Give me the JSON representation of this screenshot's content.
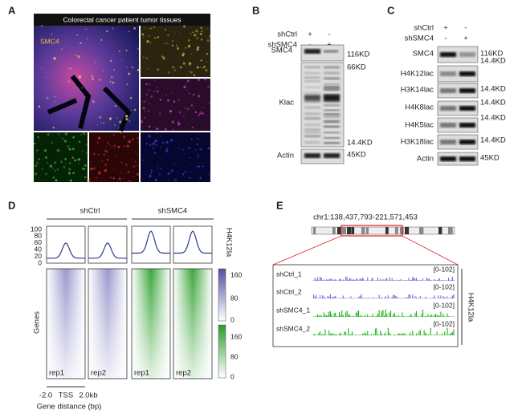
{
  "panel_a": {
    "letter": "A",
    "title": "Colorectal cancer patient tumor tissues",
    "label": "SMC4"
  },
  "panel_b": {
    "letter": "B",
    "conditions": [
      {
        "name": "shCtrl",
        "lanes": [
          "+",
          "-"
        ]
      },
      {
        "name": "shSMC4",
        "lanes": [
          "-",
          "+"
        ]
      }
    ],
    "rows": [
      {
        "label": "SMC4",
        "markers": [
          "116KD"
        ]
      },
      {
        "label": "Klac",
        "markers": [
          "66KD",
          "14.4KD"
        ]
      },
      {
        "label": "Actin",
        "markers": [
          "45KD"
        ]
      }
    ]
  },
  "panel_c": {
    "letter": "C",
    "conditions": [
      {
        "name": "shCtrl",
        "lanes": [
          "+",
          "-"
        ]
      },
      {
        "name": "shSMC4",
        "lanes": [
          "-",
          "+"
        ]
      }
    ],
    "rows": [
      {
        "label": "SMC4",
        "markers": [
          "116KD",
          "14.4KD"
        ]
      },
      {
        "label": "H4K12lac",
        "markers": []
      },
      {
        "label": "H3K14lac",
        "markers": [
          "14.4KD"
        ]
      },
      {
        "label": "H4K8lac",
        "markers": [
          "14.4KD"
        ]
      },
      {
        "label": "H4K5lac",
        "markers": [
          "14.4KD"
        ]
      },
      {
        "label": "H3K18lac",
        "markers": [
          "14.4KD"
        ]
      },
      {
        "label": "Actin",
        "markers": [
          "45KD"
        ]
      }
    ]
  },
  "panel_d": {
    "letter": "D",
    "groups": [
      "shCtrl",
      "shSMC4"
    ],
    "profile_yticks": [
      100,
      80,
      60,
      40,
      20,
      0
    ],
    "mark": "H4K12la",
    "y_label": "Genes",
    "colorbars": [
      {
        "ticks": [
          160,
          80,
          0
        ]
      },
      {
        "ticks": [
          160,
          80,
          0
        ]
      }
    ],
    "columns": [
      "rep1",
      "rep2",
      "rep1",
      "rep2"
    ],
    "xticks": [
      "-2.0",
      "TSS",
      "2.0kb"
    ],
    "x_label": "Gene distance (bp)"
  },
  "panel_e": {
    "letter": "E",
    "region": "chr1:138,437,793-221,571,453",
    "mark": "H4K12la",
    "tracks": [
      {
        "name": "shCtrl_1",
        "range": "[0-102]"
      },
      {
        "name": "shCtrl_2",
        "range": "[0-102]"
      },
      {
        "name": "shSMC4_1",
        "range": "[0-102]"
      },
      {
        "name": "shSMC4_2",
        "range": "[0-102]"
      }
    ]
  }
}
